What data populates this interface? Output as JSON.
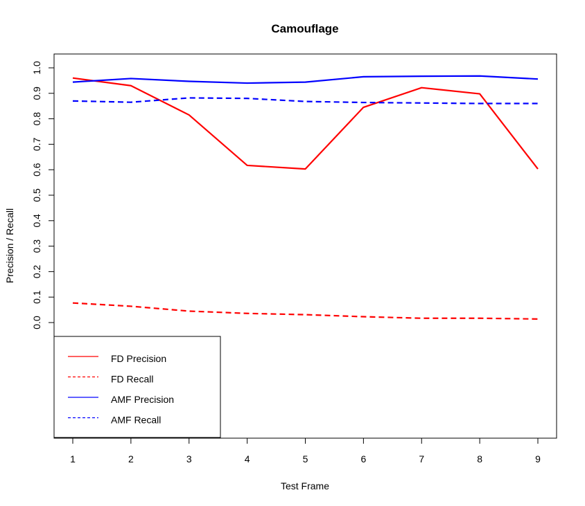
{
  "chart_data": {
    "type": "line",
    "title": "Camouflage",
    "xlabel": "Test Frame",
    "ylabel": "Precision / Recall",
    "x": [
      1,
      2,
      3,
      4,
      5,
      6,
      7,
      8,
      9
    ],
    "x_ticks": [
      "1",
      "2",
      "3",
      "4",
      "5",
      "6",
      "7",
      "8",
      "9"
    ],
    "y_ticks": [
      "0.0",
      "0.1",
      "0.2",
      "0.3",
      "0.4",
      "0.5",
      "0.6",
      "0.7",
      "0.8",
      "0.9",
      "1.0"
    ],
    "xlim": [
      1,
      9
    ],
    "ylim": [
      0,
      1
    ],
    "grid": false,
    "legend_position": "bottom-left",
    "series": [
      {
        "name": "FD Precision",
        "color": "#ff0000",
        "style": "solid",
        "values": [
          0.96,
          0.93,
          0.815,
          0.617,
          0.603,
          0.845,
          0.922,
          0.898,
          0.603
        ]
      },
      {
        "name": "FD Recall",
        "color": "#ff0000",
        "style": "dashed",
        "values": [
          0.077,
          0.064,
          0.045,
          0.036,
          0.031,
          0.023,
          0.017,
          0.017,
          0.014
        ]
      },
      {
        "name": "AMF Precision",
        "color": "#0000ff",
        "style": "solid",
        "values": [
          0.944,
          0.958,
          0.947,
          0.94,
          0.944,
          0.965,
          0.967,
          0.968,
          0.956
        ]
      },
      {
        "name": "AMF Recall",
        "color": "#0000ff",
        "style": "dashed",
        "values": [
          0.87,
          0.865,
          0.882,
          0.88,
          0.868,
          0.864,
          0.862,
          0.86,
          0.86
        ]
      }
    ]
  }
}
